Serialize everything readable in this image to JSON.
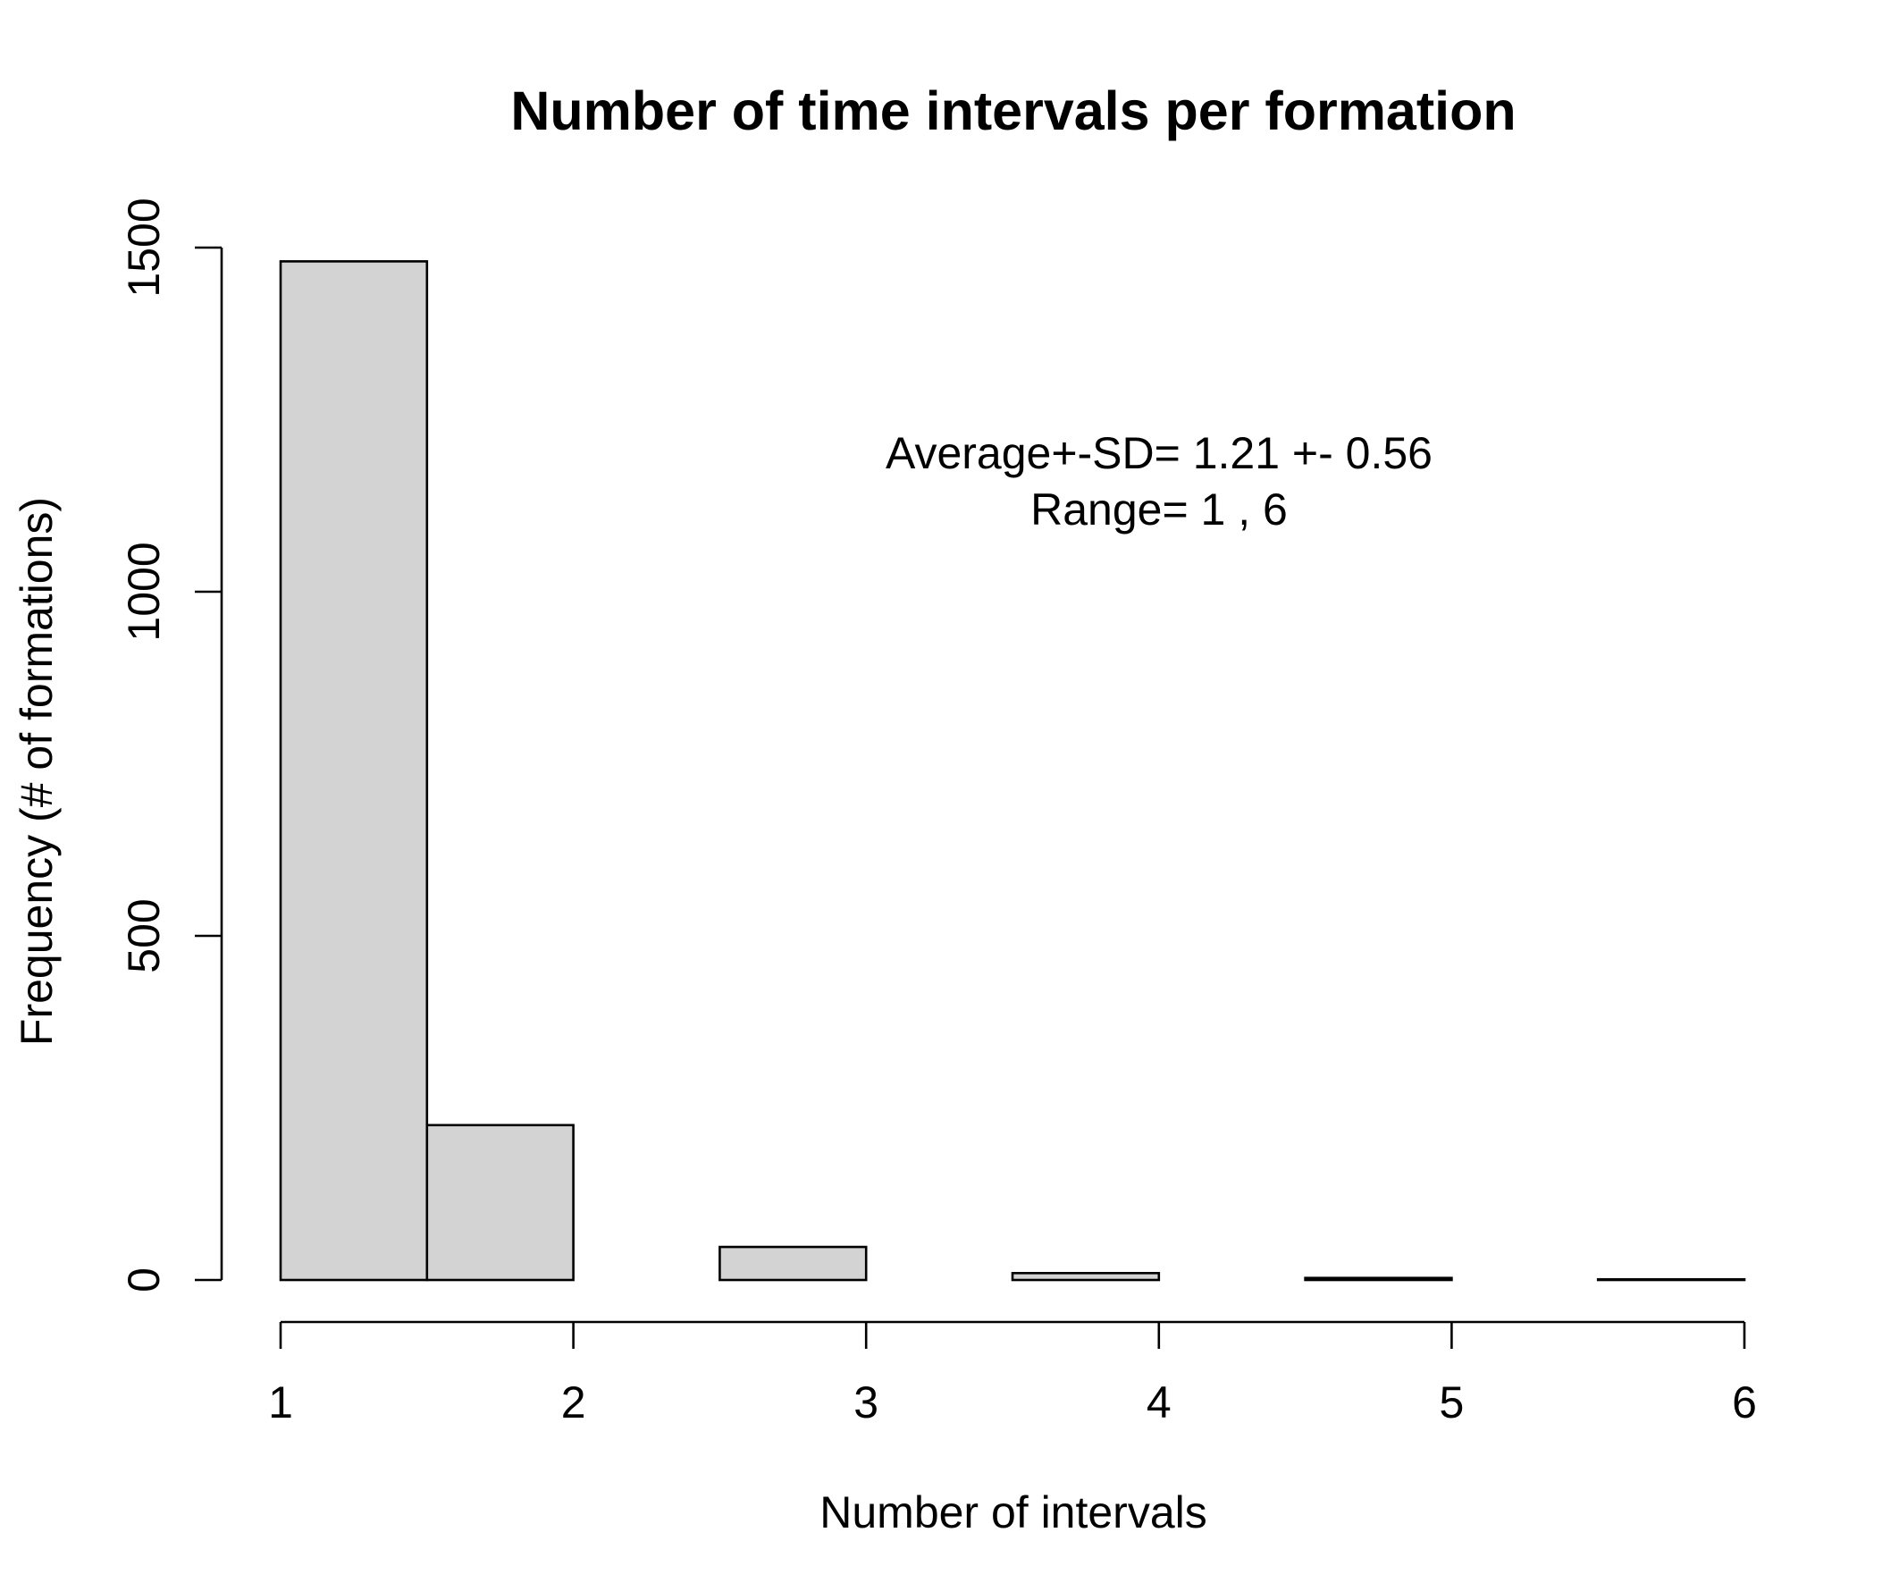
{
  "chart_data": {
    "type": "bar",
    "title": "Number of time intervals per formation",
    "xlabel": "Number of intervals",
    "ylabel": "Frequency (# of formations)",
    "bins": [
      {
        "from": 1.0,
        "to": 1.5,
        "value": 1480
      },
      {
        "from": 1.5,
        "to": 2.0,
        "value": 225
      },
      {
        "from": 2.0,
        "to": 2.5,
        "value": 0
      },
      {
        "from": 2.5,
        "to": 3.0,
        "value": 48
      },
      {
        "from": 3.0,
        "to": 3.5,
        "value": 0
      },
      {
        "from": 3.5,
        "to": 4.0,
        "value": 10
      },
      {
        "from": 4.0,
        "to": 4.5,
        "value": 0
      },
      {
        "from": 4.5,
        "to": 5.0,
        "value": 3
      },
      {
        "from": 5.0,
        "to": 5.5,
        "value": 0
      },
      {
        "from": 5.5,
        "to": 6.0,
        "value": 1
      }
    ],
    "xlim": [
      1,
      6
    ],
    "ylim": [
      0,
      1500
    ],
    "xticks": [
      "1",
      "2",
      "3",
      "4",
      "5",
      "6"
    ],
    "yticks": [
      "0",
      "500",
      "1000",
      "1500"
    ],
    "annotations": [
      "Average+-SD= 1.21 +- 0.56",
      "Range= 1 , 6"
    ],
    "bar_fill": "#d3d3d3",
    "bar_stroke": "#000000",
    "grid": false,
    "legend": false
  }
}
